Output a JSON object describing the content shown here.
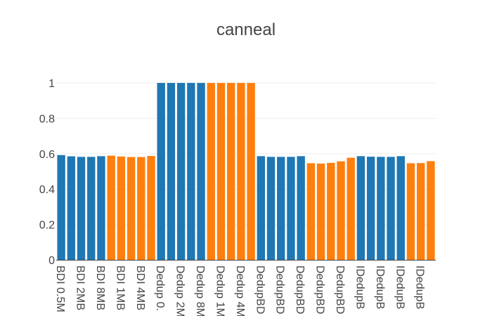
{
  "chart_data": {
    "type": "bar",
    "title": "canneal",
    "xlabel": "",
    "ylabel": "",
    "ylim": [
      0,
      1.04
    ],
    "grid": true,
    "legend": "none",
    "yticks": [
      0,
      0.2,
      0.4,
      0.6,
      0.8,
      1
    ],
    "ytick_labels": [
      "0",
      "0.2",
      "0.4",
      "0.6",
      "0.8",
      "1"
    ],
    "colors": {
      "blue": "#1f77b4",
      "orange": "#ff7f0e",
      "grid": "#eeeeee",
      "axis": "#444444",
      "text": "#444444"
    },
    "categories": [
      "BDI 0.5M",
      "BDI 1MB",
      "BDI 2MB",
      "BDI 4MB",
      "BDI 8MB",
      "BDI 0.5MB",
      "BDI 1MB",
      "BDI 2MB",
      "BDI 4MB",
      "BDI 8MB",
      "Dedup 0.",
      "Dedup 1M",
      "Dedup 2M",
      "Dedup 4M",
      "Dedup 8M",
      "Dedup 1M",
      "Dedup 2M",
      "Dedup 4M",
      "Dedup 8M",
      "Dedup 0.",
      "DedupBD",
      "DedupBD",
      "DedupBD",
      "DedupBD",
      "DedupBD",
      "DedupBD",
      "DedupBD",
      "DedupBD",
      "DedupBD",
      "DedupBD",
      "IDedupB",
      "IDedupB",
      "IDedupB",
      "IDedupB",
      "IDedupB",
      "IDedupB",
      "IDedupB",
      "IDedupB"
    ],
    "x_tick_labels": [
      "BDI 0.5M",
      "BDI 2MB",
      "BDI 8MB",
      "BDI 1MB",
      "BDI 4MB",
      "Dedup 0.",
      "Dedup 2M",
      "Dedup 8M",
      "Dedup 1M",
      "Dedup 4M",
      "DedupBD",
      "DedupBD",
      "DedupBD",
      "DedupBD",
      "DedupBD",
      "IDedupB",
      "IDedupB",
      "IDedupB",
      "IDedupB"
    ],
    "values": [
      0.592,
      0.585,
      0.582,
      0.582,
      0.586,
      0.589,
      0.584,
      0.581,
      0.581,
      0.587,
      1.0,
      1.0,
      1.0,
      1.0,
      1.0,
      1.0,
      1.0,
      1.0,
      1.0,
      1.0,
      0.586,
      0.582,
      0.582,
      0.582,
      0.586,
      0.546,
      0.544,
      0.548,
      0.557,
      0.577,
      0.586,
      0.583,
      0.582,
      0.582,
      0.586,
      0.546,
      0.547,
      0.558
    ],
    "bar_colors": [
      "blue",
      "blue",
      "blue",
      "blue",
      "blue",
      "orange",
      "orange",
      "orange",
      "orange",
      "orange",
      "blue",
      "blue",
      "blue",
      "blue",
      "blue",
      "orange",
      "orange",
      "orange",
      "orange",
      "orange",
      "blue",
      "blue",
      "blue",
      "blue",
      "blue",
      "orange",
      "orange",
      "orange",
      "orange",
      "orange",
      "blue",
      "blue",
      "blue",
      "blue",
      "blue",
      "orange",
      "orange",
      "orange"
    ]
  }
}
